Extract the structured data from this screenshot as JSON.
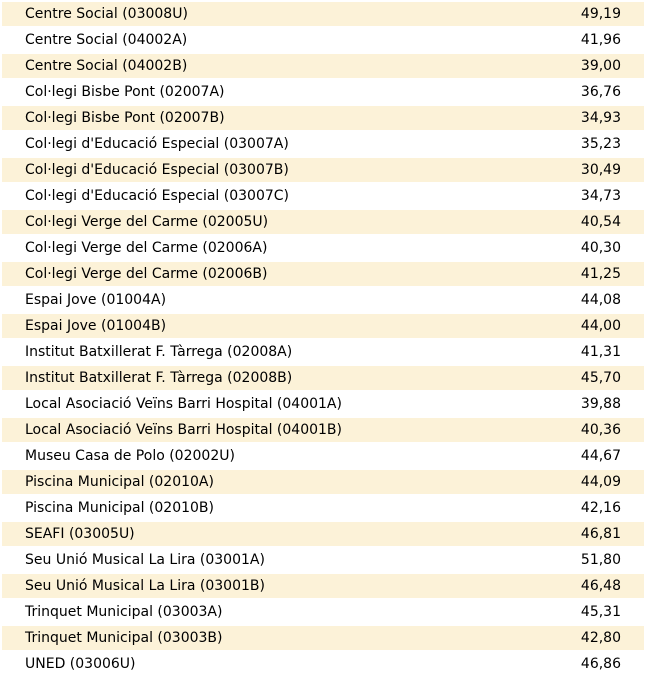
{
  "colors": {
    "row_stripe": "#FCF2D8",
    "row_plain": "#FFFFFF",
    "text": "#000000"
  },
  "table": {
    "columns": [
      "station",
      "value"
    ],
    "rows": [
      {
        "name": "Centre Social (03008U)",
        "value": "49,19"
      },
      {
        "name": "Centre Social (04002A)",
        "value": "41,96"
      },
      {
        "name": "Centre Social (04002B)",
        "value": "39,00"
      },
      {
        "name": "Col·legi Bisbe Pont (02007A)",
        "value": "36,76"
      },
      {
        "name": "Col·legi Bisbe Pont (02007B)",
        "value": "34,93"
      },
      {
        "name": "Col·legi d'Educació Especial (03007A)",
        "value": "35,23"
      },
      {
        "name": "Col·legi d'Educació Especial (03007B)",
        "value": "30,49"
      },
      {
        "name": "Col·legi d'Educació Especial (03007C)",
        "value": "34,73"
      },
      {
        "name": "Col·legi Verge del Carme (02005U)",
        "value": "40,54"
      },
      {
        "name": "Col·legi Verge del Carme (02006A)",
        "value": "40,30"
      },
      {
        "name": "Col·legi Verge del Carme (02006B)",
        "value": "41,25"
      },
      {
        "name": "Espai Jove (01004A)",
        "value": "44,08"
      },
      {
        "name": "Espai Jove (01004B)",
        "value": "44,00"
      },
      {
        "name": "Institut Batxillerat F. Tàrrega (02008A)",
        "value": "41,31"
      },
      {
        "name": "Institut Batxillerat F. Tàrrega (02008B)",
        "value": "45,70"
      },
      {
        "name": "Local Asociació Veïns Barri Hospital (04001A)",
        "value": "39,88"
      },
      {
        "name": "Local Asociació Veïns Barri Hospital (04001B)",
        "value": "40,36"
      },
      {
        "name": "Museu Casa de Polo (02002U)",
        "value": "44,67"
      },
      {
        "name": "Piscina Municipal (02010A)",
        "value": "44,09"
      },
      {
        "name": "Piscina Municipal (02010B)",
        "value": "42,16"
      },
      {
        "name": "SEAFI (03005U)",
        "value": "46,81"
      },
      {
        "name": "Seu Unió Musical La Lira (03001A)",
        "value": "51,80"
      },
      {
        "name": "Seu Unió Musical La Lira (03001B)",
        "value": "46,48"
      },
      {
        "name": "Trinquet Municipal (03003A)",
        "value": "45,31"
      },
      {
        "name": "Trinquet Municipal (03003B)",
        "value": "42,80"
      },
      {
        "name": "UNED (03006U)",
        "value": "46,86"
      }
    ]
  }
}
